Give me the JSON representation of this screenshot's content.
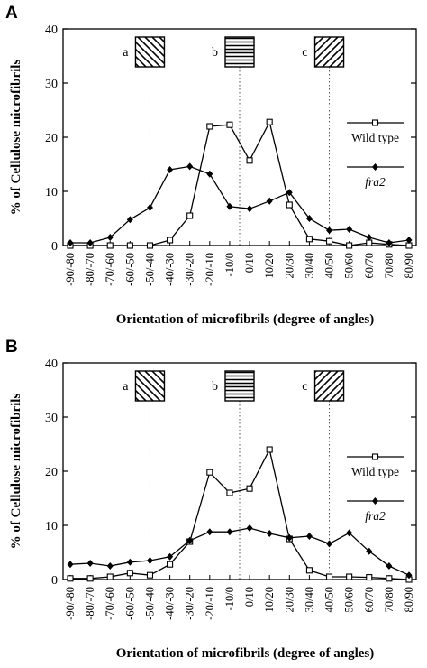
{
  "chart_data": [
    {
      "panel_label": "A",
      "type": "line",
      "xlabel": "Orientation of microfibrils (degree of angles)",
      "ylabel": "% of Cellulose microfibrils",
      "ylim": [
        0,
        40
      ],
      "yticks": [
        "0",
        "10",
        "20",
        "30",
        "40"
      ],
      "categories": [
        "-90/-80",
        "-80/-70",
        "-70/-60",
        "-60/-50",
        "-50/-40",
        "-40/-30",
        "-30/-20",
        "-20/-10",
        "-10/0",
        "0/10",
        "10/20",
        "20/30",
        "30/40",
        "40/50",
        "50/60",
        "60/70",
        "70/80",
        "80/90"
      ],
      "series": [
        {
          "name": "Wild type",
          "marker": "open-square",
          "values": [
            0,
            0,
            0,
            0,
            0,
            1,
            5.5,
            22,
            22.3,
            15.7,
            22.8,
            7.5,
            1.2,
            0.8,
            0,
            0.5,
            0.2,
            0
          ]
        },
        {
          "name": "fra2",
          "marker": "filled-diamond",
          "values": [
            0.5,
            0.5,
            1.5,
            4.8,
            7,
            14,
            14.6,
            13.2,
            7.2,
            6.8,
            8.2,
            9.8,
            5,
            2.8,
            3,
            1.5,
            0.5,
            1
          ]
        }
      ],
      "orientation_boxes": [
        {
          "label": "a",
          "pattern": "diagonal-backslash",
          "category_at": "-50/-40"
        },
        {
          "label": "b",
          "pattern": "horizontal",
          "category_at": "-10/0/0/10"
        },
        {
          "label": "c",
          "pattern": "diagonal-slash",
          "category_at": "40/50"
        }
      ],
      "legend_position": "right"
    },
    {
      "panel_label": "B",
      "type": "line",
      "xlabel": "Orientation of microfibrils (degree of angles)",
      "ylabel": "% of Cellulose microfibrils",
      "ylim": [
        0,
        40
      ],
      "yticks": [
        "0",
        "10",
        "20",
        "30",
        "40"
      ],
      "categories": [
        "-90/-80",
        "-80/-70",
        "-70/-60",
        "-60/-50",
        "-50/-40",
        "-40/-30",
        "-30/-20",
        "-20/-10",
        "-10/0",
        "0/10",
        "10/20",
        "20/30",
        "30/40",
        "40/50",
        "50/60",
        "60/70",
        "70/80",
        "80/90"
      ],
      "series": [
        {
          "name": "Wild type",
          "marker": "open-square",
          "values": [
            0.2,
            0.2,
            0.5,
            1.2,
            0.8,
            2.8,
            7,
            19.8,
            16,
            16.8,
            24,
            7.5,
            1.7,
            0.5,
            0.5,
            0.4,
            0.2,
            0
          ]
        },
        {
          "name": "fra2",
          "marker": "filled-diamond",
          "values": [
            2.8,
            3,
            2.5,
            3.2,
            3.5,
            4.2,
            7.2,
            8.8,
            8.8,
            9.5,
            8.5,
            7.7,
            8,
            6.6,
            8.6,
            5.2,
            2.5,
            0.8
          ]
        }
      ],
      "orientation_boxes": [
        {
          "label": "a",
          "pattern": "diagonal-backslash",
          "category_at": "-50/-40"
        },
        {
          "label": "b",
          "pattern": "horizontal",
          "category_at": "-10/0/0/10"
        },
        {
          "label": "c",
          "pattern": "diagonal-slash",
          "category_at": "40/50"
        }
      ],
      "legend_position": "right"
    }
  ]
}
